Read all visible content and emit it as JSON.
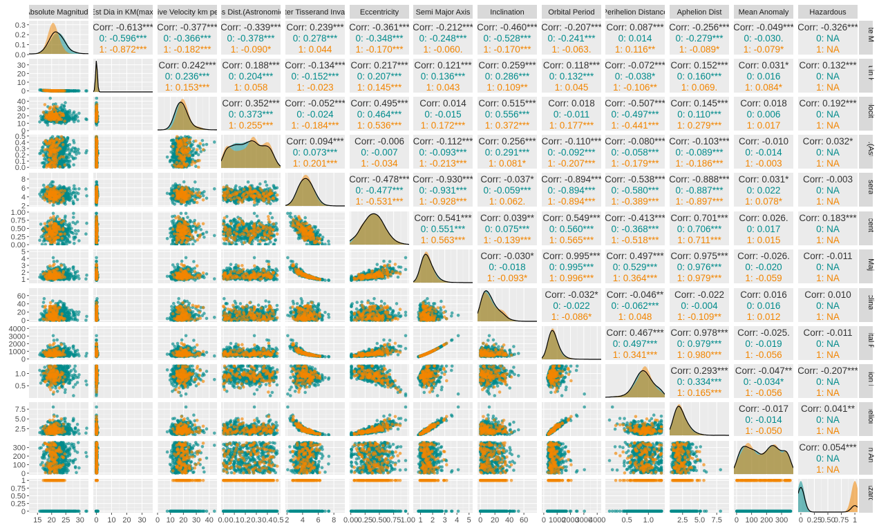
{
  "chart_data": {
    "type": "scatter",
    "subtype": "pairs-matrix",
    "title": "",
    "legend": "none",
    "grid": true,
    "group_colors": {
      "0": "#008B8B",
      "1": "#F28500"
    },
    "variables": [
      {
        "header": "Absolute Magnitude",
        "strip": "Absolute Magnitude",
        "range": [
          12,
          33
        ],
        "ticks": [
          15,
          20,
          25,
          30
        ],
        "tick_labels": [
          "15",
          "20",
          "25",
          "30"
        ]
      },
      {
        "header": "Est Dia in KM(max)",
        "strip": "Est Dia in KM(max)",
        "range": [
          -2,
          37
        ],
        "ticks": [
          0,
          10,
          20,
          30
        ],
        "tick_labels": [
          "0",
          "10",
          "20",
          "30"
        ]
      },
      {
        "header": "Relative Velocity km per sec",
        "strip": "Relative Velocity km per sec",
        "range": [
          0,
          46
        ],
        "ticks": [
          0,
          10,
          20,
          30,
          40
        ],
        "tick_labels": [
          "0",
          "10",
          "20",
          "30",
          "40"
        ]
      },
      {
        "header": "Miss Dist.(Astronomical)",
        "strip": "Miss Dist.(Astronomical)",
        "range": [
          -0.02,
          0.52
        ],
        "ticks": [
          0,
          0.1,
          0.2,
          0.3,
          0.4,
          0.5
        ],
        "tick_labels": [
          "0.0",
          "0.1",
          "0.2",
          "0.3",
          "0.4",
          "0.5"
        ]
      },
      {
        "header": "Jupiter Tisserand Invariant",
        "strip": "Jupiter Tisserand Invariant",
        "range": [
          1.8,
          9.4
        ],
        "ticks": [
          2,
          4,
          6,
          8
        ],
        "tick_labels": [
          "2",
          "4",
          "6",
          "8"
        ]
      },
      {
        "header": "Eccentricity",
        "strip": "Eccentricity",
        "range": [
          -0.02,
          1.02
        ],
        "ticks": [
          0,
          0.25,
          0.5,
          0.75,
          1
        ],
        "tick_labels": [
          "0.00",
          "0.25",
          "0.50",
          "0.75",
          "1.00"
        ]
      },
      {
        "header": "Semi Major Axis",
        "strip": "Semi Major Axis",
        "range": [
          0.4,
          5.3
        ],
        "ticks": [
          1,
          2,
          3,
          4,
          5
        ],
        "tick_labels": [
          "1",
          "2",
          "3",
          "4",
          "5"
        ]
      },
      {
        "header": "Inclination",
        "strip": "Inclination",
        "range": [
          -4,
          78
        ],
        "ticks": [
          0,
          20,
          40,
          60
        ],
        "tick_labels": [
          "0",
          "20",
          "40",
          "60"
        ]
      },
      {
        "header": "Orbital Period",
        "strip": "Orbital Period",
        "range": [
          -150,
          4300
        ],
        "ticks": [
          0,
          1000,
          2000,
          3000,
          4000
        ],
        "tick_labels": [
          "0",
          "1000",
          "2000",
          "3000",
          "4000"
        ]
      },
      {
        "header": "Perihelion Distance",
        "strip": "Perihelion Distance",
        "range": [
          0.0,
          1.38
        ],
        "ticks": [
          0.5,
          1.0
        ],
        "tick_labels": [
          "0.5",
          "1.0"
        ]
      },
      {
        "header": "Aphelion Dist",
        "strip": "Aphelion Dist",
        "range": [
          0.6,
          9.3
        ],
        "ticks": [
          2.5,
          5.0,
          7.5
        ],
        "tick_labels": [
          "2.5",
          "5.0",
          "7.5"
        ]
      },
      {
        "header": "Mean Anomaly",
        "strip": "Mean Anomaly",
        "range": [
          -18,
          378
        ],
        "ticks": [
          0,
          100,
          200,
          300
        ],
        "tick_labels": [
          "0",
          "100",
          "200",
          "300"
        ]
      },
      {
        "header": "Hazardous",
        "strip": "Hazardous",
        "range": [
          -0.05,
          1.05
        ],
        "ticks": [
          0,
          0.25,
          0.5,
          0.75,
          1
        ],
        "tick_labels": [
          "0",
          "0.25",
          "0.50",
          "0.75",
          "1"
        ]
      }
    ],
    "diagonal_y_axis": [
      {
        "range": [
          0,
          0.34
        ],
        "ticks": [
          0,
          0.1,
          0.2,
          0.3
        ],
        "tick_labels": [
          "0.0",
          "0.1",
          "0.2",
          "0.3"
        ]
      },
      {
        "range": [
          -2,
          37
        ],
        "ticks": [
          0,
          10,
          20,
          30
        ],
        "tick_labels": [
          "0",
          "10",
          "20",
          "30"
        ]
      }
    ],
    "correlations": [
      {
        "row": 1,
        "col": 2,
        "total": "Corr: -0.613***",
        "g0": "0: -0.596***",
        "g1": "1: -0.872***"
      },
      {
        "row": 1,
        "col": 3,
        "total": "Corr: -0.377***",
        "g0": "0: -0.366***",
        "g1": "1: -0.182***"
      },
      {
        "row": 1,
        "col": 4,
        "total": "Corr: -0.339***",
        "g0": "0: -0.378***",
        "g1": "1: -0.090*"
      },
      {
        "row": 1,
        "col": 5,
        "total": "Corr: 0.239***",
        "g0": "0: 0.278***",
        "g1": "1: 0.044"
      },
      {
        "row": 1,
        "col": 6,
        "total": "Corr: -0.361***",
        "g0": "0: -0.348***",
        "g1": "1: -0.170***"
      },
      {
        "row": 1,
        "col": 7,
        "total": "Corr: -0.212***",
        "g0": "0: -0.248***",
        "g1": "1: -0.060."
      },
      {
        "row": 1,
        "col": 8,
        "total": "Corr: -0.460***",
        "g0": "0: -0.528***",
        "g1": "1: -0.170***"
      },
      {
        "row": 1,
        "col": 9,
        "total": "Corr: -0.207***",
        "g0": "0: -0.241***",
        "g1": "1: -0.063."
      },
      {
        "row": 1,
        "col": 10,
        "total": "Corr: 0.087***",
        "g0": "0: 0.014",
        "g1": "1: 0.116**"
      },
      {
        "row": 1,
        "col": 11,
        "total": "Corr: -0.256***",
        "g0": "0: -0.279***",
        "g1": "1: -0.089*"
      },
      {
        "row": 1,
        "col": 12,
        "total": "Corr: -0.049***",
        "g0": "0: -0.030.",
        "g1": "1: -0.079*"
      },
      {
        "row": 1,
        "col": 13,
        "total": "Corr: -0.326***",
        "g0": "0:   NA",
        "g1": "1:   NA"
      },
      {
        "row": 2,
        "col": 3,
        "total": "Corr: 0.242***",
        "g0": "0: 0.236***",
        "g1": "1: 0.153***"
      },
      {
        "row": 2,
        "col": 4,
        "total": "Corr: 0.188***",
        "g0": "0: 0.204***",
        "g1": "1: 0.058"
      },
      {
        "row": 2,
        "col": 5,
        "total": "Corr: -0.134***",
        "g0": "0: -0.152***",
        "g1": "1: -0.023"
      },
      {
        "row": 2,
        "col": 6,
        "total": "Corr: 0.217***",
        "g0": "0: 0.207***",
        "g1": "1: 0.145***"
      },
      {
        "row": 2,
        "col": 7,
        "total": "Corr: 0.121***",
        "g0": "0: 0.136***",
        "g1": "1: 0.043"
      },
      {
        "row": 2,
        "col": 8,
        "total": "Corr: 0.259***",
        "g0": "0: 0.286***",
        "g1": "1: 0.109**"
      },
      {
        "row": 2,
        "col": 9,
        "total": "Corr: 0.118***",
        "g0": "0: 0.132***",
        "g1": "1: 0.045"
      },
      {
        "row": 2,
        "col": 10,
        "total": "Corr: -0.072***",
        "g0": "0: -0.038*",
        "g1": "1: -0.106**"
      },
      {
        "row": 2,
        "col": 11,
        "total": "Corr: 0.152***",
        "g0": "0: 0.160***",
        "g1": "1: 0.069."
      },
      {
        "row": 2,
        "col": 12,
        "total": "Corr: 0.031*",
        "g0": "0: 0.016",
        "g1": "1: 0.084*"
      },
      {
        "row": 2,
        "col": 13,
        "total": "Corr: 0.132***",
        "g0": "0:   NA",
        "g1": "1:   NA"
      },
      {
        "row": 3,
        "col": 4,
        "total": "Corr: 0.352***",
        "g0": "0: 0.373***",
        "g1": "1: 0.255***"
      },
      {
        "row": 3,
        "col": 5,
        "total": "Corr: -0.052***",
        "g0": "0: -0.024",
        "g1": "1: -0.184***"
      },
      {
        "row": 3,
        "col": 6,
        "total": "Corr: 0.495***",
        "g0": "0: 0.464***",
        "g1": "1: 0.536***"
      },
      {
        "row": 3,
        "col": 7,
        "total": "Corr: 0.014",
        "g0": "0: -0.015",
        "g1": "1: 0.172***"
      },
      {
        "row": 3,
        "col": 8,
        "total": "Corr: 0.515***",
        "g0": "0: 0.556***",
        "g1": "1: 0.372***"
      },
      {
        "row": 3,
        "col": 9,
        "total": "Corr: 0.018",
        "g0": "0: -0.011",
        "g1": "1: 0.177***"
      },
      {
        "row": 3,
        "col": 10,
        "total": "Corr: -0.507***",
        "g0": "0: -0.497***",
        "g1": "1: -0.441***"
      },
      {
        "row": 3,
        "col": 11,
        "total": "Corr: 0.145***",
        "g0": "0: 0.110***",
        "g1": "1: 0.279***"
      },
      {
        "row": 3,
        "col": 12,
        "total": "Corr: 0.018",
        "g0": "0: 0.006",
        "g1": "1: 0.017"
      },
      {
        "row": 3,
        "col": 13,
        "total": "Corr: 0.192***",
        "g0": "0:   NA",
        "g1": "1:   NA"
      },
      {
        "row": 4,
        "col": 5,
        "total": "Corr: 0.094***",
        "g0": "0: 0.073***",
        "g1": "1: 0.201***"
      },
      {
        "row": 4,
        "col": 6,
        "total": "Corr: -0.006",
        "g0": "0: -0.007",
        "g1": "1: -0.034"
      },
      {
        "row": 4,
        "col": 7,
        "total": "Corr: -0.112***",
        "g0": "0: -0.093***",
        "g1": "1: -0.213***"
      },
      {
        "row": 4,
        "col": 8,
        "total": "Corr: 0.256***",
        "g0": "0: 0.291***",
        "g1": "1: 0.081*"
      },
      {
        "row": 4,
        "col": 9,
        "total": "Corr: -0.110***",
        "g0": "0: -0.092***",
        "g1": "1: -0.207***"
      },
      {
        "row": 4,
        "col": 10,
        "total": "Corr: -0.080***",
        "g0": "0: -0.058***",
        "g1": "1: -0.179***"
      },
      {
        "row": 4,
        "col": 11,
        "total": "Corr: -0.103***",
        "g0": "0: -0.089***",
        "g1": "1: -0.186***"
      },
      {
        "row": 4,
        "col": 12,
        "total": "Corr: -0.010",
        "g0": "0: -0.014",
        "g1": "1: -0.003"
      },
      {
        "row": 4,
        "col": 13,
        "total": "Corr: 0.032*",
        "g0": "0:   NA",
        "g1": "1:   NA"
      },
      {
        "row": 5,
        "col": 6,
        "total": "Corr: -0.478***",
        "g0": "0: -0.477***",
        "g1": "1: -0.531***"
      },
      {
        "row": 5,
        "col": 7,
        "total": "Corr: -0.930***",
        "g0": "0: -0.931***",
        "g1": "1: -0.928***"
      },
      {
        "row": 5,
        "col": 8,
        "total": "Corr: -0.037*",
        "g0": "0: -0.059***",
        "g1": "1: 0.062."
      },
      {
        "row": 5,
        "col": 9,
        "total": "Corr: -0.894***",
        "g0": "0: -0.894***",
        "g1": "1: -0.894***"
      },
      {
        "row": 5,
        "col": 10,
        "total": "Corr: -0.538***",
        "g0": "0: -0.580***",
        "g1": "1: -0.389***"
      },
      {
        "row": 5,
        "col": 11,
        "total": "Corr: -0.888***",
        "g0": "0: -0.887***",
        "g1": "1: -0.897***"
      },
      {
        "row": 5,
        "col": 12,
        "total": "Corr: 0.031*",
        "g0": "0: 0.022",
        "g1": "1: 0.078*"
      },
      {
        "row": 5,
        "col": 13,
        "total": "Corr: -0.003",
        "g0": "0:   NA",
        "g1": "1:   NA"
      },
      {
        "row": 6,
        "col": 7,
        "total": "Corr: 0.541***",
        "g0": "0: 0.551***",
        "g1": "1: 0.563***"
      },
      {
        "row": 6,
        "col": 8,
        "total": "Corr: 0.039**",
        "g0": "0: 0.075***",
        "g1": "1: -0.139***"
      },
      {
        "row": 6,
        "col": 9,
        "total": "Corr: 0.549***",
        "g0": "0: 0.560***",
        "g1": "1: 0.565***"
      },
      {
        "row": 6,
        "col": 10,
        "total": "Corr: -0.413***",
        "g0": "0: -0.368***",
        "g1": "1: -0.518***"
      },
      {
        "row": 6,
        "col": 11,
        "total": "Corr: 0.701***",
        "g0": "0: 0.706***",
        "g1": "1: 0.711***"
      },
      {
        "row": 6,
        "col": 12,
        "total": "Corr: 0.026.",
        "g0": "0: 0.017",
        "g1": "1: 0.015"
      },
      {
        "row": 6,
        "col": 13,
        "total": "Corr: 0.183***",
        "g0": "0:   NA",
        "g1": "1:   NA"
      },
      {
        "row": 7,
        "col": 8,
        "total": "Corr: -0.030*",
        "g0": "0: -0.018",
        "g1": "1: -0.093*"
      },
      {
        "row": 7,
        "col": 9,
        "total": "Corr: 0.995***",
        "g0": "0: 0.995***",
        "g1": "1: 0.996***"
      },
      {
        "row": 7,
        "col": 10,
        "total": "Corr: 0.497***",
        "g0": "0: 0.529***",
        "g1": "1: 0.364***"
      },
      {
        "row": 7,
        "col": 11,
        "total": "Corr: 0.975***",
        "g0": "0: 0.976***",
        "g1": "1: 0.979***"
      },
      {
        "row": 7,
        "col": 12,
        "total": "Corr: -0.026.",
        "g0": "0: -0.020",
        "g1": "1: -0.059"
      },
      {
        "row": 7,
        "col": 13,
        "total": "Corr: -0.011",
        "g0": "0:   NA",
        "g1": "1:   NA"
      },
      {
        "row": 8,
        "col": 9,
        "total": "Corr: -0.032*",
        "g0": "0: -0.022",
        "g1": "1: -0.086*"
      },
      {
        "row": 8,
        "col": 10,
        "total": "Corr: -0.046**",
        "g0": "0: -0.062***",
        "g1": "1: 0.048"
      },
      {
        "row": 8,
        "col": 11,
        "total": "Corr: -0.022",
        "g0": "0: -0.004",
        "g1": "1: -0.109**"
      },
      {
        "row": 8,
        "col": 12,
        "total": "Corr: 0.016",
        "g0": "0: 0.016",
        "g1": "1: 0.012"
      },
      {
        "row": 8,
        "col": 13,
        "total": "Corr: 0.010",
        "g0": "0:   NA",
        "g1": "1:   NA"
      },
      {
        "row": 9,
        "col": 10,
        "total": "Corr: 0.467***",
        "g0": "0: 0.497***",
        "g1": "1: 0.341***"
      },
      {
        "row": 9,
        "col": 11,
        "total": "Corr: 0.978***",
        "g0": "0: 0.979***",
        "g1": "1: 0.980***"
      },
      {
        "row": 9,
        "col": 12,
        "total": "Corr: -0.025.",
        "g0": "0: -0.019",
        "g1": "1: -0.056"
      },
      {
        "row": 9,
        "col": 13,
        "total": "Corr: -0.011",
        "g0": "0:   NA",
        "g1": "1:   NA"
      },
      {
        "row": 10,
        "col": 11,
        "total": "Corr: 0.293***",
        "g0": "0: 0.334***",
        "g1": "1: 0.165***"
      },
      {
        "row": 10,
        "col": 12,
        "total": "Corr: -0.047**",
        "g0": "0: -0.034*",
        "g1": "1: -0.056"
      },
      {
        "row": 10,
        "col": 13,
        "total": "Corr: -0.207***",
        "g0": "0:   NA",
        "g1": "1:   NA"
      },
      {
        "row": 11,
        "col": 12,
        "total": "Corr: -0.017",
        "g0": "0: -0.014",
        "g1": "1: -0.050"
      },
      {
        "row": 11,
        "col": 13,
        "total": "Corr: 0.041**",
        "g0": "0:   NA",
        "g1": "1:   NA"
      },
      {
        "row": 12,
        "col": 13,
        "total": "Corr: 0.054***",
        "g0": "0:   NA",
        "g1": "1:   NA"
      }
    ]
  }
}
